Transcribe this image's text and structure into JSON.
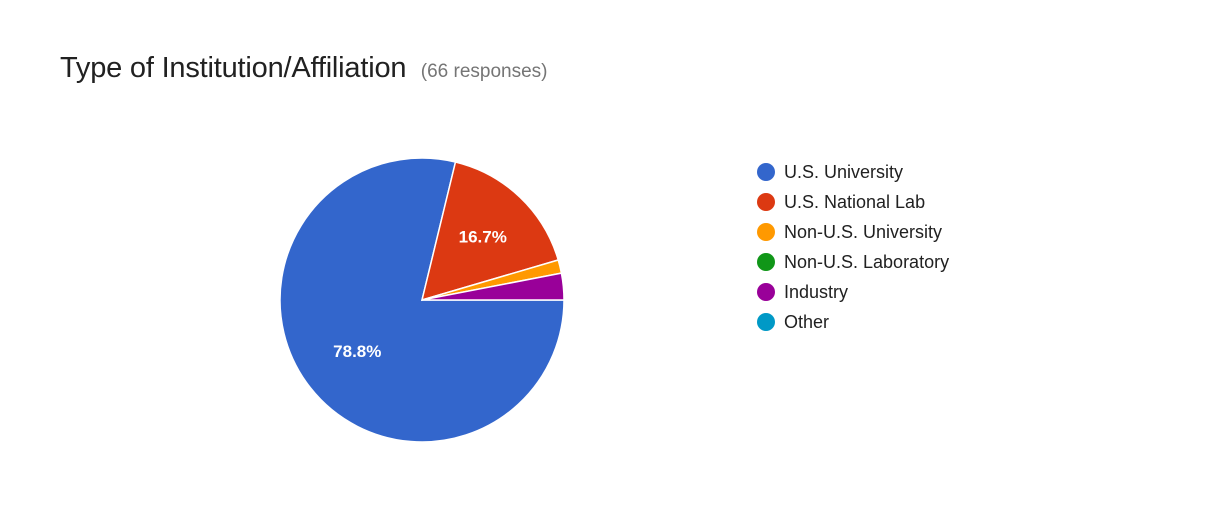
{
  "header": {
    "title": "Type of Institution/Affiliation",
    "responses": "(66 responses)"
  },
  "chart_data": {
    "type": "pie",
    "total_responses": 66,
    "slices": [
      {
        "label": "U.S. University",
        "count": 52,
        "percent": 78.8,
        "color": "#3366cc",
        "value_label": "78.8%"
      },
      {
        "label": "U.S. National Lab",
        "count": 11,
        "percent": 16.7,
        "color": "#dc3912",
        "value_label": "16.7%"
      },
      {
        "label": "Non-U.S. University",
        "count": 1,
        "percent": 1.5,
        "color": "#ff9900",
        "value_label": ""
      },
      {
        "label": "Non-U.S. Laboratory",
        "count": 0,
        "percent": 0,
        "color": "#109618",
        "value_label": ""
      },
      {
        "label": "Industry",
        "count": 2,
        "percent": 3.0,
        "color": "#990099",
        "value_label": ""
      },
      {
        "label": "Other",
        "count": 0,
        "percent": 0,
        "color": "#0099c6",
        "value_label": ""
      }
    ],
    "legend_position": "right"
  }
}
